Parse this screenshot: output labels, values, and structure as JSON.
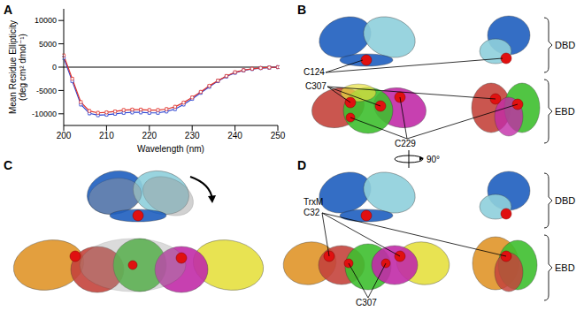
{
  "chart_data": {
    "type": "line",
    "x": [
      200,
      202,
      204,
      206,
      208,
      210,
      212,
      214,
      216,
      218,
      220,
      222,
      224,
      226,
      228,
      230,
      232,
      234,
      236,
      238,
      240,
      242,
      244,
      246,
      248,
      250
    ],
    "series": [
      {
        "color": "#2f45d0",
        "marker": "circle",
        "values": [
          2000,
          -3000,
          -8000,
          -9900,
          -10300,
          -10200,
          -10000,
          -9800,
          -9700,
          -9700,
          -9800,
          -9800,
          -9500,
          -9000,
          -8000,
          -6800,
          -5500,
          -4200,
          -3000,
          -2000,
          -1200,
          -700,
          -400,
          -200,
          -100,
          0
        ],
        "errors": [
          300,
          300,
          300,
          300,
          300,
          300,
          300,
          300,
          300,
          300,
          300,
          300,
          300,
          300,
          300,
          300,
          300,
          300,
          300,
          300,
          300,
          300,
          300,
          300,
          300,
          300
        ]
      },
      {
        "color": "#e0342c",
        "marker": "circle",
        "values": [
          2500,
          -2500,
          -7500,
          -9400,
          -9800,
          -9700,
          -9500,
          -9200,
          -9100,
          -9100,
          -9200,
          -9200,
          -9000,
          -8500,
          -7600,
          -6500,
          -5300,
          -4000,
          -2900,
          -1900,
          -1100,
          -650,
          -350,
          -180,
          -80,
          0
        ],
        "errors": [
          300,
          300,
          300,
          300,
          300,
          300,
          300,
          300,
          300,
          300,
          300,
          300,
          300,
          300,
          300,
          300,
          300,
          300,
          300,
          300,
          300,
          300,
          300,
          300,
          300,
          300
        ]
      }
    ],
    "xlim": [
      200,
      250
    ],
    "xticks": [
      200,
      210,
      220,
      230,
      240,
      250
    ],
    "ylim": [
      -12500,
      12500
    ],
    "yticks": [
      -10000,
      -5000,
      0,
      5000,
      10000
    ],
    "x_label": "Wavelength (nm)",
    "y_label": [
      "Mean Residue Ellipticity",
      "(deg cm² dmol⁻¹)"
    ],
    "grid": false
  },
  "panel_labels": [
    "A",
    "B",
    "C",
    "D"
  ],
  "structures": {
    "B": {
      "labels": [
        "C124",
        "C307",
        "C229"
      ],
      "domains": [
        "DBD",
        "EBD"
      ],
      "rotation": "90°"
    },
    "D": {
      "labels": [
        "TrxM",
        "C32",
        "C307"
      ],
      "domains": [
        "DBD",
        "EBD"
      ]
    }
  }
}
